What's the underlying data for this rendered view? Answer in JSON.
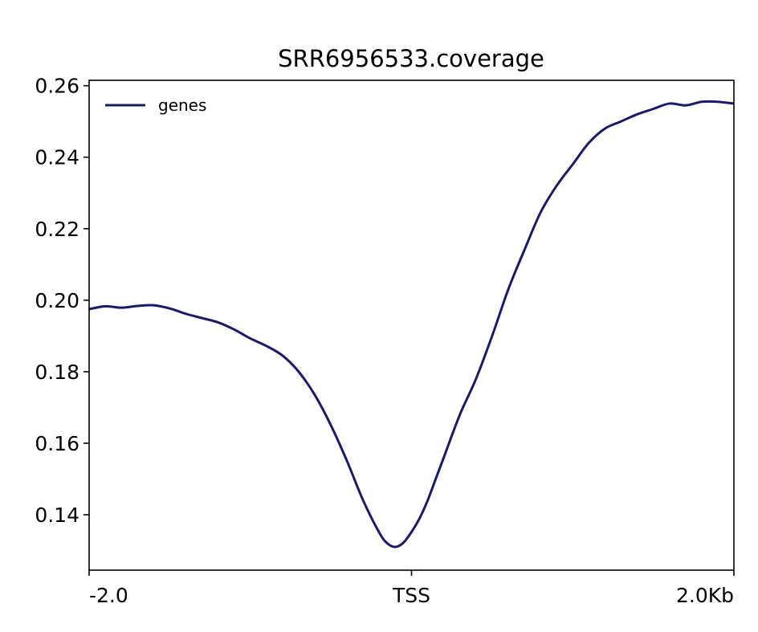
{
  "chart_data": {
    "type": "line",
    "title": "SRR6956533.coverage",
    "xlabel": "",
    "ylabel": "",
    "xlim": [
      -2000,
      2000
    ],
    "ylim": [
      0.1245,
      0.2615
    ],
    "x_ticks": [
      {
        "value": -2000,
        "label": "-2.0"
      },
      {
        "value": 0,
        "label": "TSS"
      },
      {
        "value": 2000,
        "label": "2.0Kb"
      }
    ],
    "y_ticks": [
      {
        "value": 0.14,
        "label": "0.14"
      },
      {
        "value": 0.16,
        "label": "0.16"
      },
      {
        "value": 0.18,
        "label": "0.18"
      },
      {
        "value": 0.2,
        "label": "0.20"
      },
      {
        "value": 0.22,
        "label": "0.22"
      },
      {
        "value": 0.24,
        "label": "0.24"
      },
      {
        "value": 0.26,
        "label": "0.26"
      }
    ],
    "grid": false,
    "legend": {
      "placement": "top-left"
    },
    "series": [
      {
        "name": "genes",
        "color": "#191970",
        "x": [
          -2000,
          -1900,
          -1800,
          -1700,
          -1600,
          -1500,
          -1400,
          -1300,
          -1200,
          -1100,
          -1000,
          -900,
          -800,
          -700,
          -600,
          -500,
          -400,
          -300,
          -200,
          -150,
          -100,
          -50,
          0,
          50,
          100,
          150,
          200,
          300,
          400,
          500,
          600,
          700,
          800,
          900,
          1000,
          1100,
          1200,
          1300,
          1400,
          1500,
          1600,
          1700,
          1800,
          1900,
          2000
        ],
        "y": [
          0.1975,
          0.1983,
          0.1979,
          0.1984,
          0.1986,
          0.1977,
          0.1962,
          0.195,
          0.1938,
          0.1918,
          0.1893,
          0.1872,
          0.1845,
          0.18,
          0.1735,
          0.165,
          0.155,
          0.144,
          0.135,
          0.132,
          0.131,
          0.1322,
          0.1352,
          0.139,
          0.144,
          0.15,
          0.156,
          0.168,
          0.178,
          0.19,
          0.203,
          0.214,
          0.2245,
          0.232,
          0.238,
          0.244,
          0.248,
          0.25,
          0.252,
          0.2535,
          0.255,
          0.2545,
          0.2555,
          0.2555,
          0.255
        ]
      }
    ]
  }
}
